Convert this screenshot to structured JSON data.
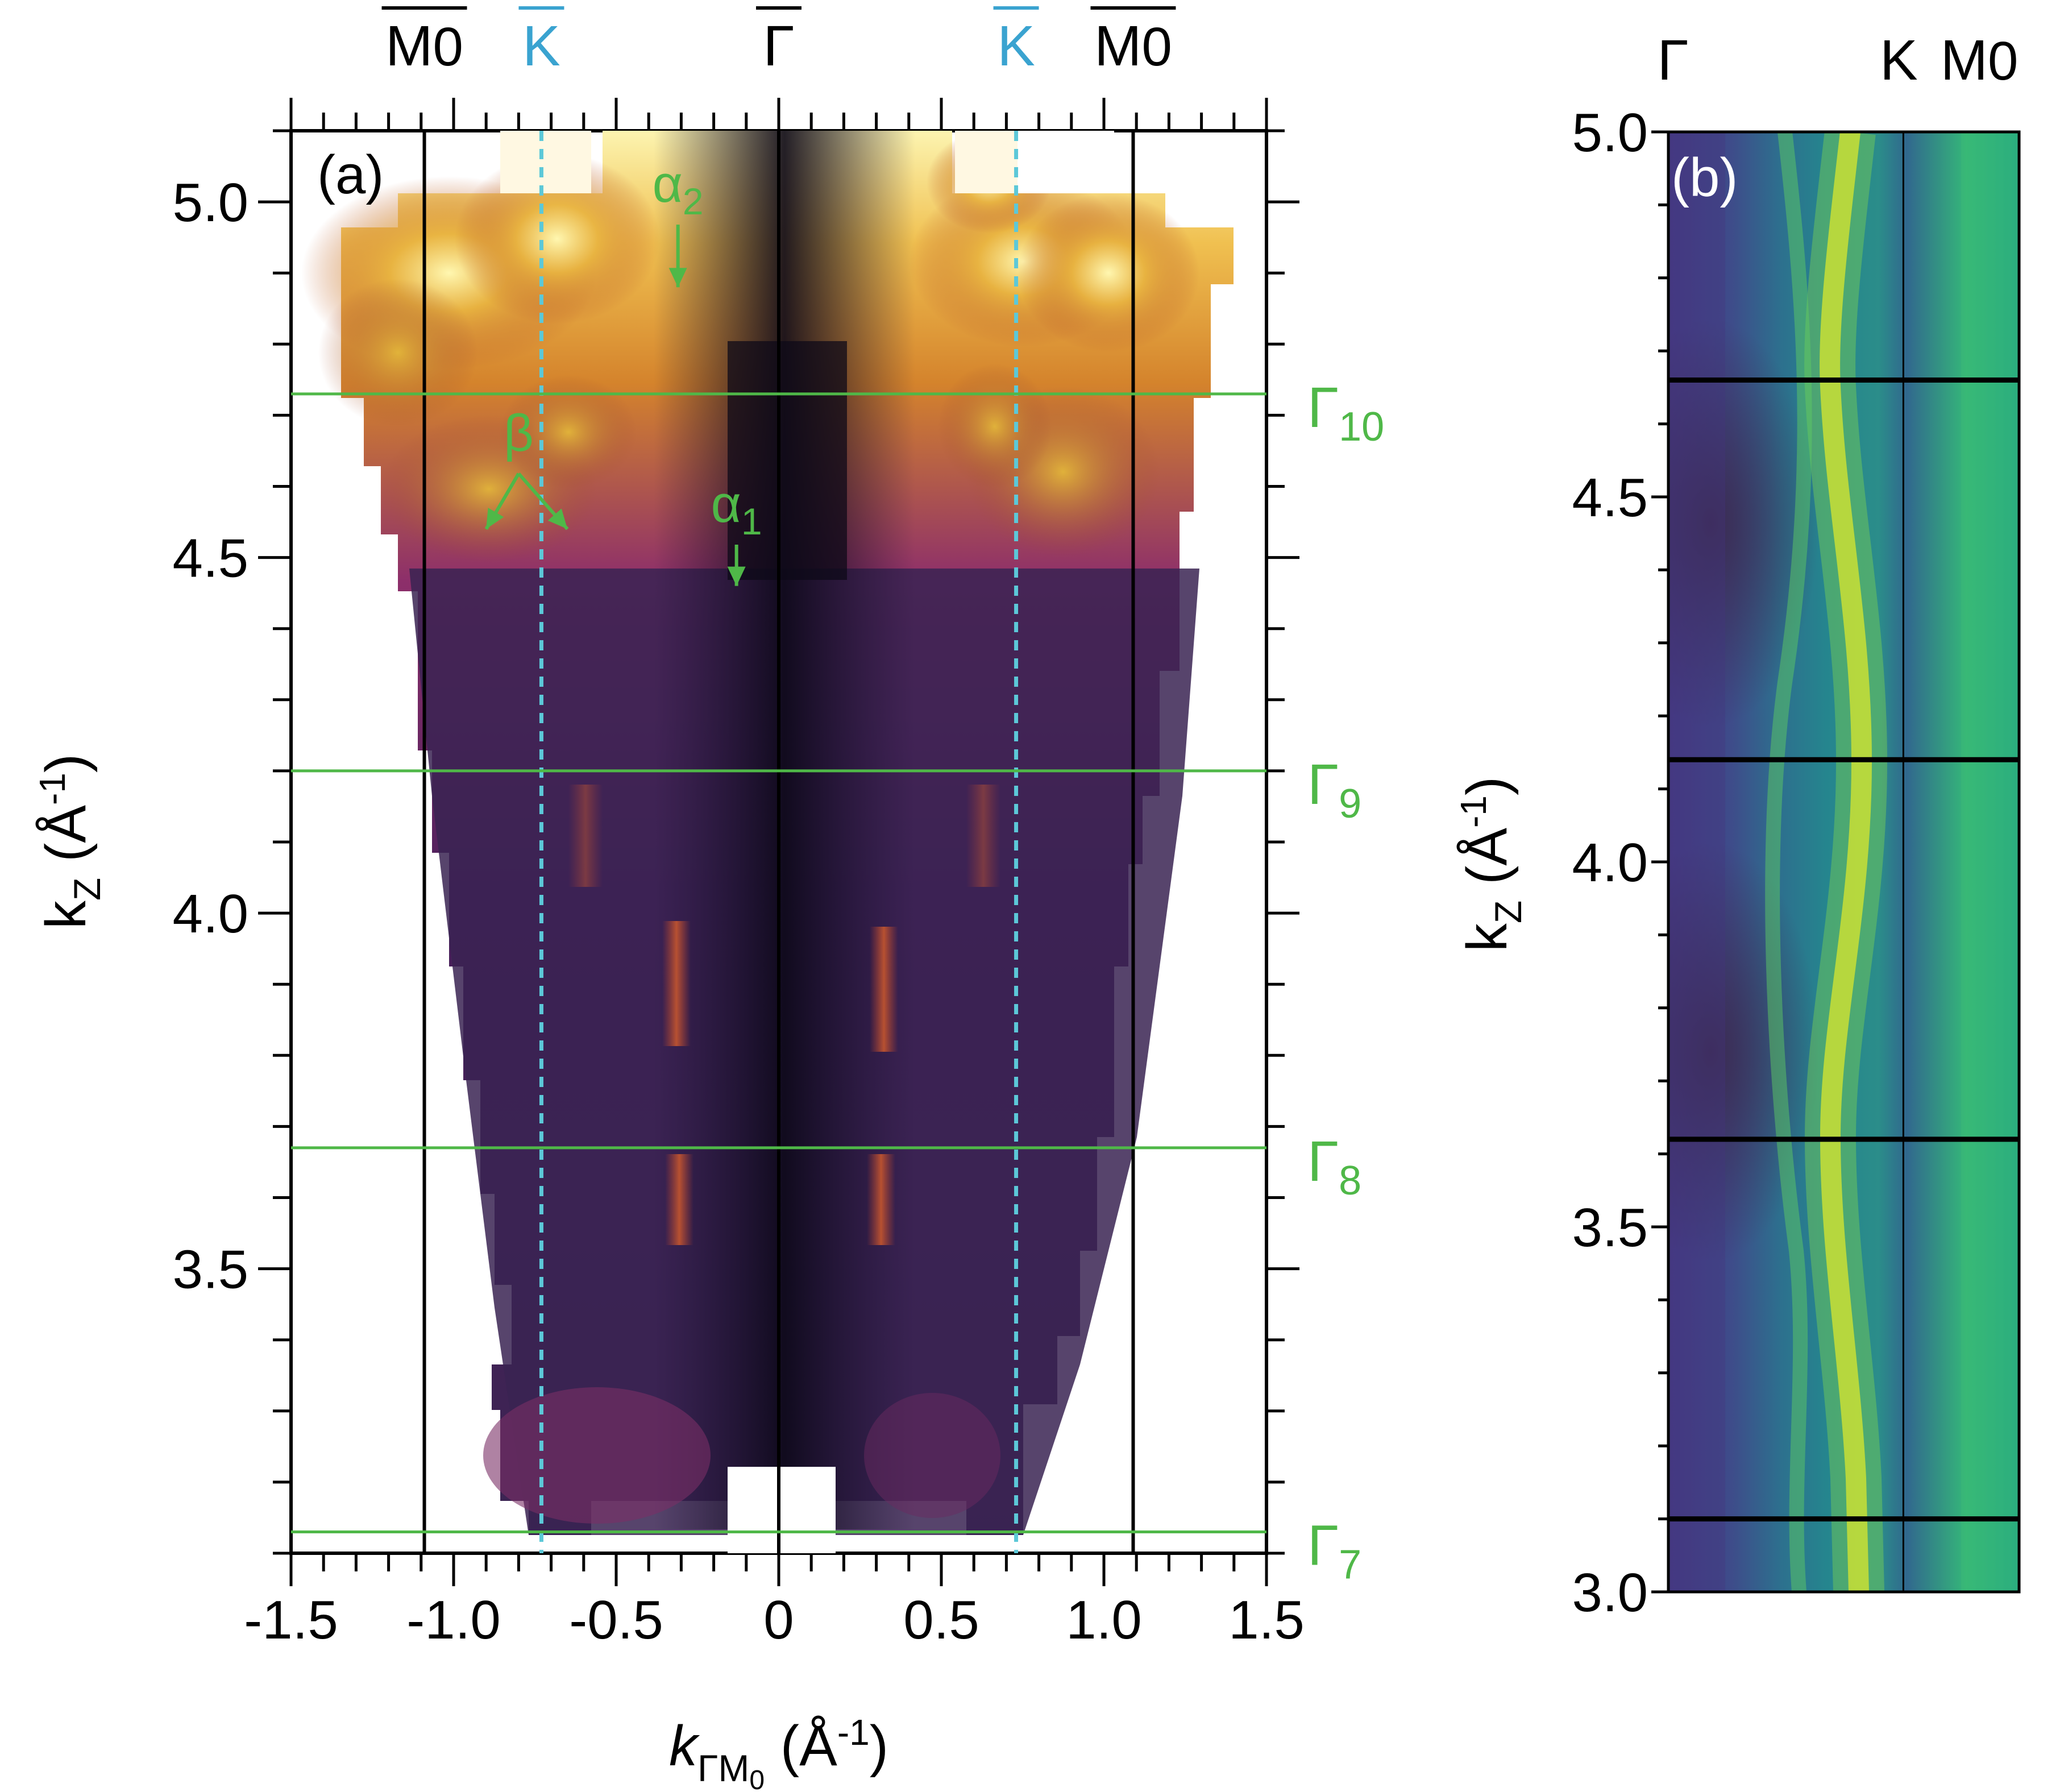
{
  "chart_data": [
    {
      "type": "heatmap",
      "panel_label": "(a)",
      "title": "",
      "xlabel": {
        "main": "k",
        "sub": "ΓM",
        "sub2": "0",
        "units": " (Å",
        "sup": "-1",
        "close": ")"
      },
      "ylabel": {
        "main": "k",
        "sub": "Z",
        "units": " (Å",
        "sup": "-1",
        "close": ")"
      },
      "xlim": [
        -1.5,
        1.5
      ],
      "ylim": [
        3.1,
        5.1
      ],
      "xticks": [
        -1.5,
        -1.0,
        -0.5,
        0,
        0.5,
        1.0,
        1.5
      ],
      "xtick_labels": [
        "-1.5",
        "-1.0",
        "-0.5",
        "0",
        "0.5",
        "1.0",
        "1.5"
      ],
      "yticks": [
        3.5,
        4.0,
        4.5,
        5.0
      ],
      "ytick_labels": [
        "3.5",
        "4.0",
        "4.5",
        "5.0"
      ],
      "top_symmetry_points": [
        {
          "label": "M",
          "sub": "0",
          "x": -1.09,
          "color": "#000000"
        },
        {
          "label": "K",
          "sub": "",
          "x": -0.73,
          "color": "#3aa3d0"
        },
        {
          "label": "Γ",
          "sub": "",
          "x": 0.0,
          "color": "#000000"
        },
        {
          "label": "K",
          "sub": "",
          "x": 0.73,
          "color": "#3aa3d0"
        },
        {
          "label": "M",
          "sub": "0",
          "x": 1.09,
          "color": "#000000"
        }
      ],
      "vertical_lines": [
        {
          "x": -1.09,
          "style": "solid",
          "color": "#000000"
        },
        {
          "x": 0.0,
          "style": "solid",
          "color": "#000000"
        },
        {
          "x": 1.09,
          "style": "solid",
          "color": "#000000"
        },
        {
          "x": -0.73,
          "style": "dashed",
          "color": "#5cc8d8"
        },
        {
          "x": 0.73,
          "style": "dashed",
          "color": "#5cc8d8"
        }
      ],
      "gamma_lines": [
        {
          "label": "Γ",
          "sub": "10",
          "kz": 4.73
        },
        {
          "label": "Γ",
          "sub": "9",
          "kz": 4.2
        },
        {
          "label": "Γ",
          "sub": "8",
          "kz": 3.67
        },
        {
          "label": "Γ",
          "sub": "7",
          "kz": 3.13
        }
      ],
      "annotations": [
        {
          "text": "α",
          "sub": "2",
          "x": -0.31,
          "y": 5.0,
          "arrow_to": [
            -0.31,
            4.88
          ]
        },
        {
          "text": "β",
          "sub": "",
          "x": -0.8,
          "y": 4.65,
          "arrows_to": [
            [
              -0.9,
              4.54
            ],
            [
              -0.65,
              4.54
            ]
          ]
        },
        {
          "text": "α",
          "sub": "1",
          "x": -0.13,
          "y": 4.55,
          "arrow_to": [
            -0.13,
            4.46
          ]
        }
      ],
      "colormap": "inferno",
      "intensity_note": "dark purple background, bright yellow at high kz near |k| 0.6-1.2, orange stripes at |k| ~0.32"
    },
    {
      "type": "heatmap",
      "panel_label": "(b)",
      "title": "",
      "ylabel": {
        "main": "k",
        "sub": "Z",
        "units": " (Å",
        "sup": "-1",
        "close": ")"
      },
      "ylim": [
        3.0,
        5.0
      ],
      "yticks": [
        3.0,
        3.5,
        4.0,
        4.5,
        5.0
      ],
      "ytick_labels": [
        "3.0",
        "3.5",
        "4.0",
        "4.5",
        "5.0"
      ],
      "top_symmetry_points": [
        {
          "label": "Γ",
          "sub": "",
          "pos": 0.0
        },
        {
          "label": "K",
          "sub": "",
          "pos": 0.67
        },
        {
          "label": "M",
          "sub": "0",
          "pos": 1.0
        }
      ],
      "vertical_lines": [
        {
          "pos": 0.67
        }
      ],
      "horizontal_lines": [
        4.66,
        4.14,
        3.62,
        3.1
      ],
      "colormap": "viridis"
    }
  ]
}
